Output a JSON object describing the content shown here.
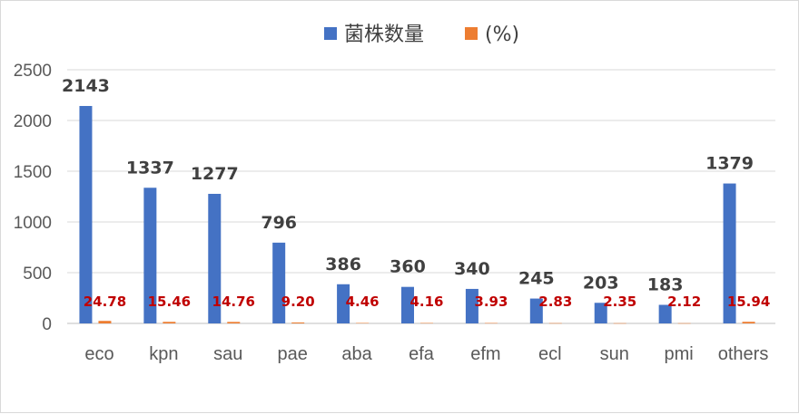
{
  "chart_data": {
    "type": "bar",
    "title": "",
    "xlabel": "",
    "ylabel": "",
    "categories": [
      "eco",
      "kpn",
      "sau",
      "pae",
      "aba",
      "efa",
      "efm",
      "ecl",
      "sun",
      "pmi",
      "others"
    ],
    "series": [
      {
        "name": "菌株数量",
        "color": "#4472c4",
        "values": [
          2143,
          1337,
          1277,
          796,
          386,
          360,
          340,
          245,
          203,
          183,
          1379
        ],
        "labels": [
          "2143",
          "1337",
          "1277",
          "796",
          "386",
          "360",
          "340",
          "245",
          "203",
          "183",
          "1379"
        ]
      },
      {
        "name": "(%)",
        "color": "#ed7d31",
        "values": [
          24.78,
          15.46,
          14.76,
          9.2,
          4.46,
          4.16,
          3.93,
          2.83,
          2.35,
          2.12,
          15.94
        ],
        "labels": [
          "24.78",
          "15.46",
          "14.76",
          "9.20",
          "4.46",
          "4.16",
          "3.93",
          "2.83",
          "2.35",
          "2.12",
          "15.94"
        ],
        "label_color": "#c00000"
      }
    ],
    "ylim": [
      0,
      2500
    ],
    "yticks": [
      "0",
      "500",
      "1000",
      "1500",
      "2000",
      "2500"
    ],
    "ytick_values": [
      0,
      500,
      1000,
      1500,
      2000,
      2500
    ],
    "grid": true,
    "legend_position": "top"
  }
}
